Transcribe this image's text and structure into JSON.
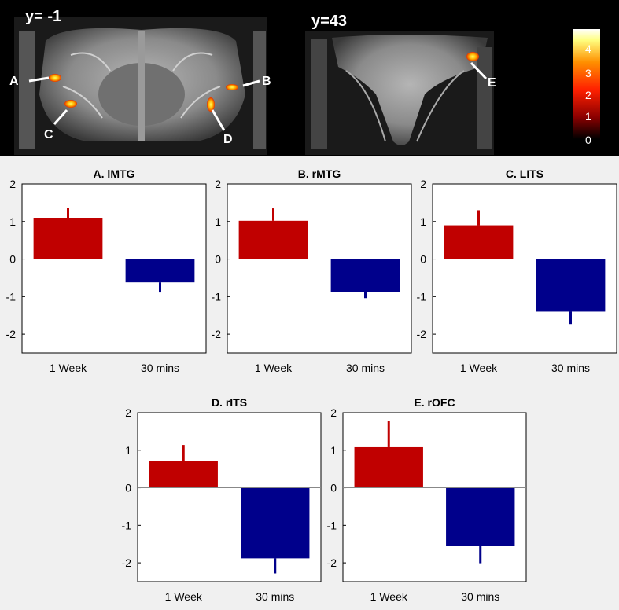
{
  "brain_panel": {
    "slices": [
      "y= -1",
      "y=43"
    ],
    "region_markers": [
      "A",
      "B",
      "C",
      "D",
      "E"
    ],
    "colorbar_ticks": [
      "0",
      "1",
      "2",
      "3",
      "4"
    ],
    "colorbar_colors": [
      "#000000",
      "#8b0000",
      "#ff2000",
      "#ff9000",
      "#ffff80",
      "#ffffff"
    ]
  },
  "chart_data": [
    {
      "type": "bar",
      "title": "A. lMTG",
      "categories": [
        "1 Week",
        "30 mins"
      ],
      "values": [
        1.1,
        -0.62
      ],
      "errors": [
        0.27,
        0.27
      ],
      "ylim": [
        -2.5,
        2
      ],
      "yticks": [
        "2",
        "1",
        "0",
        "-1",
        "-2"
      ],
      "colors": [
        "#c00000",
        "#00008b"
      ]
    },
    {
      "type": "bar",
      "title": "B. rMTG",
      "categories": [
        "1 Week",
        "30 mins"
      ],
      "values": [
        1.02,
        -0.88
      ],
      "errors": [
        0.33,
        0.16
      ],
      "ylim": [
        -2.5,
        2
      ],
      "yticks": [
        "2",
        "1",
        "0",
        "-1",
        "-2"
      ],
      "colors": [
        "#c00000",
        "#00008b"
      ]
    },
    {
      "type": "bar",
      "title": "C. LITS",
      "categories": [
        "1 Week",
        "30 mins"
      ],
      "values": [
        0.9,
        -1.4
      ],
      "errors": [
        0.4,
        0.33
      ],
      "ylim": [
        -2.5,
        2
      ],
      "yticks": [
        "2",
        "1",
        "0",
        "-1",
        "-2"
      ],
      "colors": [
        "#c00000",
        "#00008b"
      ]
    },
    {
      "type": "bar",
      "title": "D. rITS",
      "categories": [
        "1 Week",
        "30 mins"
      ],
      "values": [
        0.72,
        -1.88
      ],
      "errors": [
        0.42,
        0.4
      ],
      "ylim": [
        -2.5,
        2
      ],
      "yticks": [
        "2",
        "1",
        "0",
        "-1",
        "-2"
      ],
      "colors": [
        "#c00000",
        "#00008b"
      ]
    },
    {
      "type": "bar",
      "title": "E. rOFC",
      "categories": [
        "1 Week",
        "30 mins"
      ],
      "values": [
        1.08,
        -1.54
      ],
      "errors": [
        0.7,
        0.47
      ],
      "ylim": [
        -2.5,
        2
      ],
      "yticks": [
        "2",
        "1",
        "0",
        "-1",
        "-2"
      ],
      "colors": [
        "#c00000",
        "#00008b"
      ]
    }
  ]
}
